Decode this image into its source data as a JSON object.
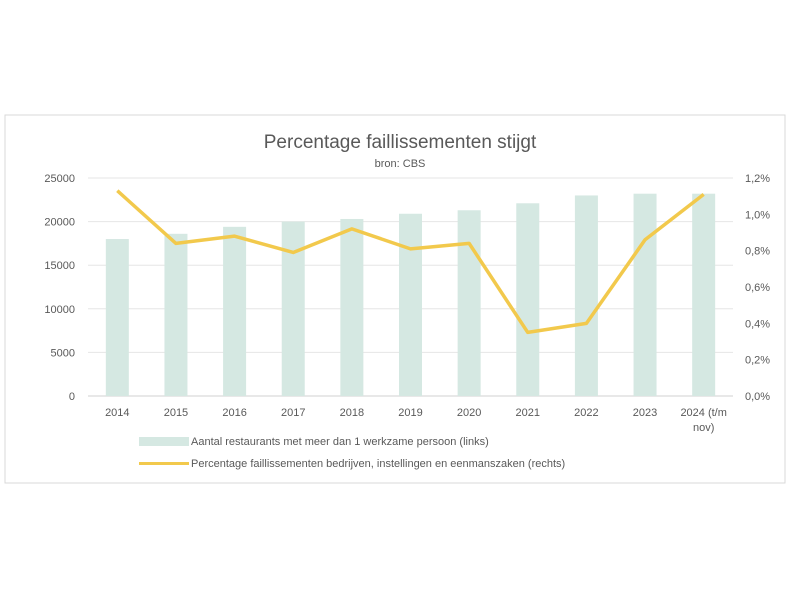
{
  "chart_data": {
    "type": "bar+line",
    "title": "Percentage faillissementen stijgt",
    "subtitle": "bron: CBS",
    "categories": [
      "2014",
      "2015",
      "2016",
      "2017",
      "2018",
      "2019",
      "2020",
      "2021",
      "2022",
      "2023",
      "2024 (t/m nov)"
    ],
    "category_lines": [
      [
        "2014"
      ],
      [
        "2015"
      ],
      [
        "2016"
      ],
      [
        "2017"
      ],
      [
        "2018"
      ],
      [
        "2019"
      ],
      [
        "2020"
      ],
      [
        "2021"
      ],
      [
        "2022"
      ],
      [
        "2023"
      ],
      [
        "2024 (t/m",
        "nov)"
      ]
    ],
    "series": [
      {
        "name": "Aantal restaurants met meer dan 1 werkzame persoon (links)",
        "type": "bar",
        "axis": "left",
        "color": "#d5e8e2",
        "values": [
          18000,
          18600,
          19400,
          20000,
          20300,
          20900,
          21300,
          22100,
          23000,
          23200,
          23200
        ]
      },
      {
        "name": "Percentage faillissementen bedrijven, instellingen en eenmanszaken (rechts)",
        "type": "line",
        "axis": "right",
        "color": "#f2c94c",
        "values": [
          1.13,
          0.84,
          0.88,
          0.79,
          0.92,
          0.81,
          0.84,
          0.35,
          0.4,
          0.86,
          1.11
        ]
      }
    ],
    "left_axis": {
      "ylim": [
        0,
        25000
      ],
      "ticks": [
        "0",
        "5000",
        "10000",
        "15000",
        "20000",
        "25000"
      ]
    },
    "right_axis": {
      "ylim": [
        0,
        1.2
      ],
      "ticks": [
        "0,0%",
        "0,2%",
        "0,4%",
        "0,6%",
        "0,8%",
        "1,0%",
        "1,2%"
      ]
    },
    "grid": true,
    "legend": "bottom"
  }
}
